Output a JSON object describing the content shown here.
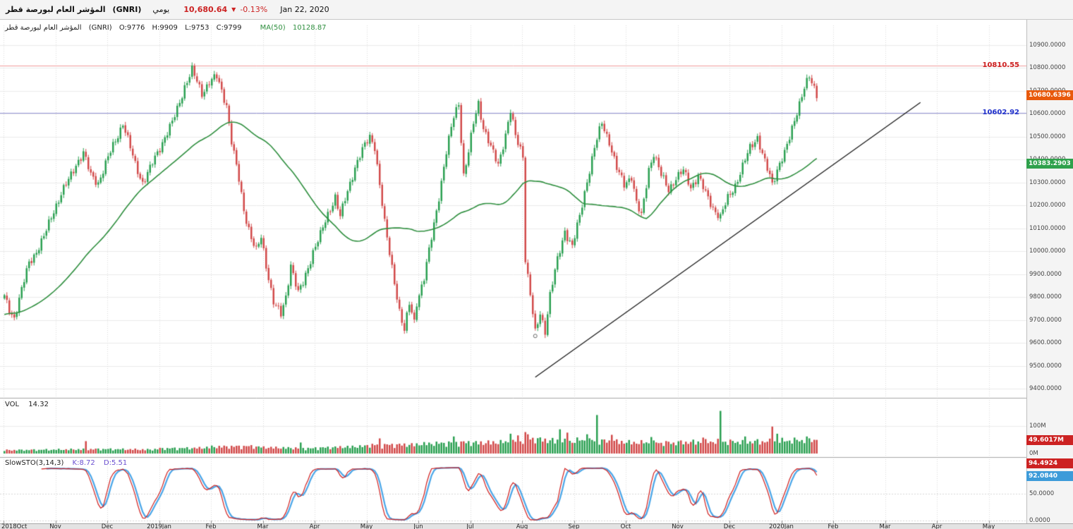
{
  "topbar": {
    "title": "المؤشر العام لبورصة قطر",
    "symbol": "(GNRI)",
    "period": "يومي",
    "last_price": "10,680.64",
    "direction_arrow": "▼",
    "change_pct": "-0.13%",
    "date": "Jan 22, 2020"
  },
  "main_header": {
    "title": "المؤشر العام لبورصة قطر",
    "symbol": "(GNRI)",
    "open": "O:9776",
    "high": "H:9909",
    "low": "L:9753",
    "close": "C:9799",
    "ma_label": "MA(50)",
    "ma_value": "10128.87"
  },
  "volume_header": {
    "label": "VOL",
    "value": "14.32"
  },
  "sto_header": {
    "label": "SlowSTO(3,14,3)",
    "k": "K:8.72",
    "d": "D:5.51"
  },
  "axis_badges": {
    "last_price": "10680.6396",
    "ma": "10383.2903",
    "volume": "49.6017M",
    "sto_k": "94.4924",
    "sto_d": "92.0840"
  },
  "level_labels": {
    "resistance": "10810.55",
    "support": "10602.92"
  },
  "chart_data": {
    "type": "candlestick",
    "title": "Qatar Exchange General Index (GNRI), daily",
    "ylim": [
      9400,
      10900
    ],
    "y_tick_step": 100,
    "x_categories": [
      "2018Oct",
      "Nov",
      "Dec",
      "2019Jan",
      "Feb",
      "Mar",
      "Apr",
      "May",
      "Jun",
      "Jul",
      "Aug",
      "Sep",
      "Oct",
      "Nov",
      "Dec",
      "2020Jan",
      "Feb",
      "Mar",
      "Apr",
      "May"
    ],
    "bars_per_month": 21,
    "total_bars": 330,
    "last_price": 10680.6396,
    "ma_period": 50,
    "ma50_current": 10383.2903,
    "levels": [
      10810.55,
      10602.92
    ],
    "trendline": {
      "start_bar": 215,
      "start_price": 9450,
      "end_bar": 371,
      "end_price": 10650
    },
    "marker_circle": {
      "bar": 215,
      "price": 9630
    },
    "close_path_anchors": [
      [
        0,
        9800
      ],
      [
        2,
        9745
      ],
      [
        4,
        9710
      ],
      [
        7,
        9830
      ],
      [
        10,
        9950
      ],
      [
        13,
        10000
      ],
      [
        16,
        10060
      ],
      [
        20,
        10180
      ],
      [
        23,
        10250
      ],
      [
        26,
        10310
      ],
      [
        29,
        10380
      ],
      [
        32,
        10430
      ],
      [
        35,
        10330
      ],
      [
        38,
        10300
      ],
      [
        41,
        10380
      ],
      [
        44,
        10460
      ],
      [
        48,
        10560
      ],
      [
        51,
        10450
      ],
      [
        53,
        10380
      ],
      [
        56,
        10300
      ],
      [
        59,
        10360
      ],
      [
        62,
        10430
      ],
      [
        65,
        10500
      ],
      [
        68,
        10560
      ],
      [
        70,
        10620
      ],
      [
        73,
        10720
      ],
      [
        76,
        10790
      ],
      [
        78,
        10740
      ],
      [
        80,
        10690
      ],
      [
        83,
        10740
      ],
      [
        86,
        10760
      ],
      [
        88,
        10700
      ],
      [
        90,
        10640
      ],
      [
        92,
        10480
      ],
      [
        95,
        10310
      ],
      [
        97,
        10180
      ],
      [
        100,
        10060
      ],
      [
        102,
        10000
      ],
      [
        104,
        10060
      ],
      [
        106,
        9940
      ],
      [
        109,
        9780
      ],
      [
        112,
        9720
      ],
      [
        114,
        9800
      ],
      [
        116,
        9945
      ],
      [
        119,
        9815
      ],
      [
        121,
        9860
      ],
      [
        123,
        9930
      ],
      [
        125,
        10000
      ],
      [
        128,
        10070
      ],
      [
        131,
        10160
      ],
      [
        134,
        10240
      ],
      [
        136,
        10150
      ],
      [
        139,
        10260
      ],
      [
        142,
        10370
      ],
      [
        145,
        10440
      ],
      [
        148,
        10500
      ],
      [
        150,
        10460
      ],
      [
        152,
        10290
      ],
      [
        154,
        10120
      ],
      [
        156,
        9990
      ],
      [
        158,
        9870
      ],
      [
        160,
        9740
      ],
      [
        162,
        9650
      ],
      [
        164,
        9770
      ],
      [
        166,
        9695
      ],
      [
        167,
        9780
      ],
      [
        170,
        9880
      ],
      [
        173,
        10060
      ],
      [
        176,
        10240
      ],
      [
        179,
        10430
      ],
      [
        182,
        10590
      ],
      [
        184,
        10650
      ],
      [
        186,
        10330
      ],
      [
        188,
        10430
      ],
      [
        190,
        10560
      ],
      [
        192,
        10650
      ],
      [
        194,
        10540
      ],
      [
        197,
        10450
      ],
      [
        200,
        10380
      ],
      [
        203,
        10510
      ],
      [
        205,
        10610
      ],
      [
        207,
        10500
      ],
      [
        209,
        10450
      ],
      [
        210,
        10420
      ],
      [
        211,
        9970
      ],
      [
        213,
        9810
      ],
      [
        215,
        9640
      ],
      [
        217,
        9730
      ],
      [
        219,
        9655
      ],
      [
        221,
        9810
      ],
      [
        224,
        9960
      ],
      [
        227,
        10090
      ],
      [
        230,
        10020
      ],
      [
        233,
        10150
      ],
      [
        236,
        10310
      ],
      [
        239,
        10450
      ],
      [
        242,
        10560
      ],
      [
        245,
        10480
      ],
      [
        248,
        10360
      ],
      [
        251,
        10290
      ],
      [
        254,
        10330
      ],
      [
        256,
        10210
      ],
      [
        258,
        10150
      ],
      [
        261,
        10360
      ],
      [
        263,
        10430
      ],
      [
        266,
        10330
      ],
      [
        269,
        10270
      ],
      [
        272,
        10320
      ],
      [
        275,
        10350
      ],
      [
        278,
        10280
      ],
      [
        281,
        10330
      ],
      [
        284,
        10250
      ],
      [
        287,
        10190
      ],
      [
        290,
        10150
      ],
      [
        293,
        10230
      ],
      [
        296,
        10290
      ],
      [
        299,
        10370
      ],
      [
        302,
        10450
      ],
      [
        305,
        10500
      ],
      [
        308,
        10390
      ],
      [
        311,
        10290
      ],
      [
        314,
        10390
      ],
      [
        316,
        10430
      ],
      [
        318,
        10490
      ],
      [
        320,
        10570
      ],
      [
        322,
        10650
      ],
      [
        324,
        10720
      ],
      [
        326,
        10757
      ],
      [
        328,
        10705
      ],
      [
        329,
        10681
      ]
    ],
    "volume_chart": {
      "type": "bar",
      "unit": "M",
      "ylim_m": [
        0,
        200
      ],
      "ticks": [
        [
          100,
          "100M"
        ],
        [
          0,
          "0M"
        ]
      ],
      "last_value_m": 49.6017,
      "base_anchors": [
        [
          0,
          12
        ],
        [
          20,
          14
        ],
        [
          40,
          16
        ],
        [
          60,
          14
        ],
        [
          63,
          18
        ],
        [
          80,
          20
        ],
        [
          84,
          24
        ],
        [
          100,
          26
        ],
        [
          105,
          22
        ],
        [
          125,
          18
        ],
        [
          126,
          20
        ],
        [
          146,
          26
        ],
        [
          147,
          30
        ],
        [
          167,
          32
        ],
        [
          168,
          34
        ],
        [
          188,
          40
        ],
        [
          189,
          38
        ],
        [
          209,
          42
        ],
        [
          210,
          55
        ],
        [
          220,
          48
        ],
        [
          230,
          42
        ],
        [
          231,
          48
        ],
        [
          251,
          42
        ],
        [
          252,
          40
        ],
        [
          272,
          38
        ],
        [
          273,
          40
        ],
        [
          293,
          44
        ],
        [
          294,
          42
        ],
        [
          314,
          44
        ],
        [
          315,
          46
        ],
        [
          329,
          50
        ]
      ],
      "spikes": [
        [
          33,
          45
        ],
        [
          120,
          40
        ],
        [
          152,
          55
        ],
        [
          182,
          62
        ],
        [
          205,
          72
        ],
        [
          208,
          66
        ],
        [
          211,
          78
        ],
        [
          212,
          70
        ],
        [
          225,
          88
        ],
        [
          228,
          76
        ],
        [
          236,
          70
        ],
        [
          240,
          140
        ],
        [
          246,
          68
        ],
        [
          262,
          60
        ],
        [
          283,
          58
        ],
        [
          290,
          155
        ],
        [
          300,
          62
        ],
        [
          311,
          98
        ],
        [
          313,
          72
        ],
        [
          320,
          58
        ],
        [
          325,
          62
        ],
        [
          329,
          49.6
        ]
      ]
    },
    "sto_chart": {
      "type": "line",
      "label": "SlowSTO(3,14,3)",
      "params": [
        3,
        14,
        3
      ],
      "ylim": [
        0,
        100
      ],
      "ticks": [
        [
          50,
          "50.0000"
        ],
        [
          0,
          "0.0000"
        ]
      ],
      "k_current": 94.4924,
      "d_current": 92.084
    }
  }
}
